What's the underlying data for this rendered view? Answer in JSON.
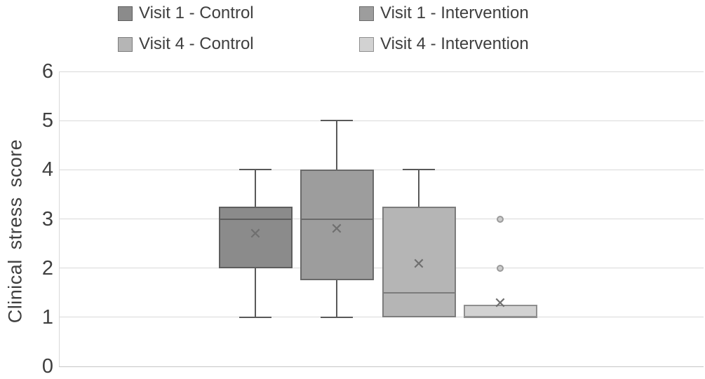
{
  "chart_data": {
    "type": "boxplot",
    "title": "",
    "xlabel": "",
    "ylabel": "Clinical stress score",
    "ylim": [
      0,
      6
    ],
    "yticks": [
      0,
      1,
      2,
      3,
      4,
      5,
      6
    ],
    "grid": true,
    "legend_position": "top",
    "text_color": "#3f3f3f",
    "gridline_color": "#d9d9d9",
    "whisker_color": "#595959",
    "mean_marker_glyph": "✕",
    "outlier_fill": "#cccccc",
    "outlier_border": "#9b9b9b",
    "series": [
      {
        "name": "Visit 1 - Control",
        "slug": "visit1-control",
        "fill": "#8b8b8b",
        "border": "#5e5e5e",
        "whisker_low": 1,
        "q1": 2,
        "median": 3,
        "q3": 3.25,
        "whisker_high": 4,
        "mean": 2.7,
        "outliers": []
      },
      {
        "name": "Visit 1 - Intervention",
        "slug": "visit1-intervention",
        "fill": "#9d9d9d",
        "border": "#6a6a6a",
        "whisker_low": 1,
        "q1": 1.75,
        "median": 3,
        "q3": 4,
        "whisker_high": 5,
        "mean": 2.8,
        "outliers": []
      },
      {
        "name": "Visit 4 - Control",
        "slug": "visit4-control",
        "fill": "#b5b5b5",
        "border": "#7c7c7c",
        "whisker_low": null,
        "q1": 1,
        "median": 1.5,
        "q3": 3.25,
        "whisker_high": 4,
        "mean": 2.08,
        "outliers": []
      },
      {
        "name": "Visit 4 - Intervention",
        "slug": "visit4-intervention",
        "fill": "#d2d2d2",
        "border": "#8f8f8f",
        "whisker_low": null,
        "q1": 1,
        "median": 1,
        "q3": 1.25,
        "whisker_high": null,
        "mean": 1.28,
        "outliers": [
          3,
          2
        ]
      }
    ]
  }
}
